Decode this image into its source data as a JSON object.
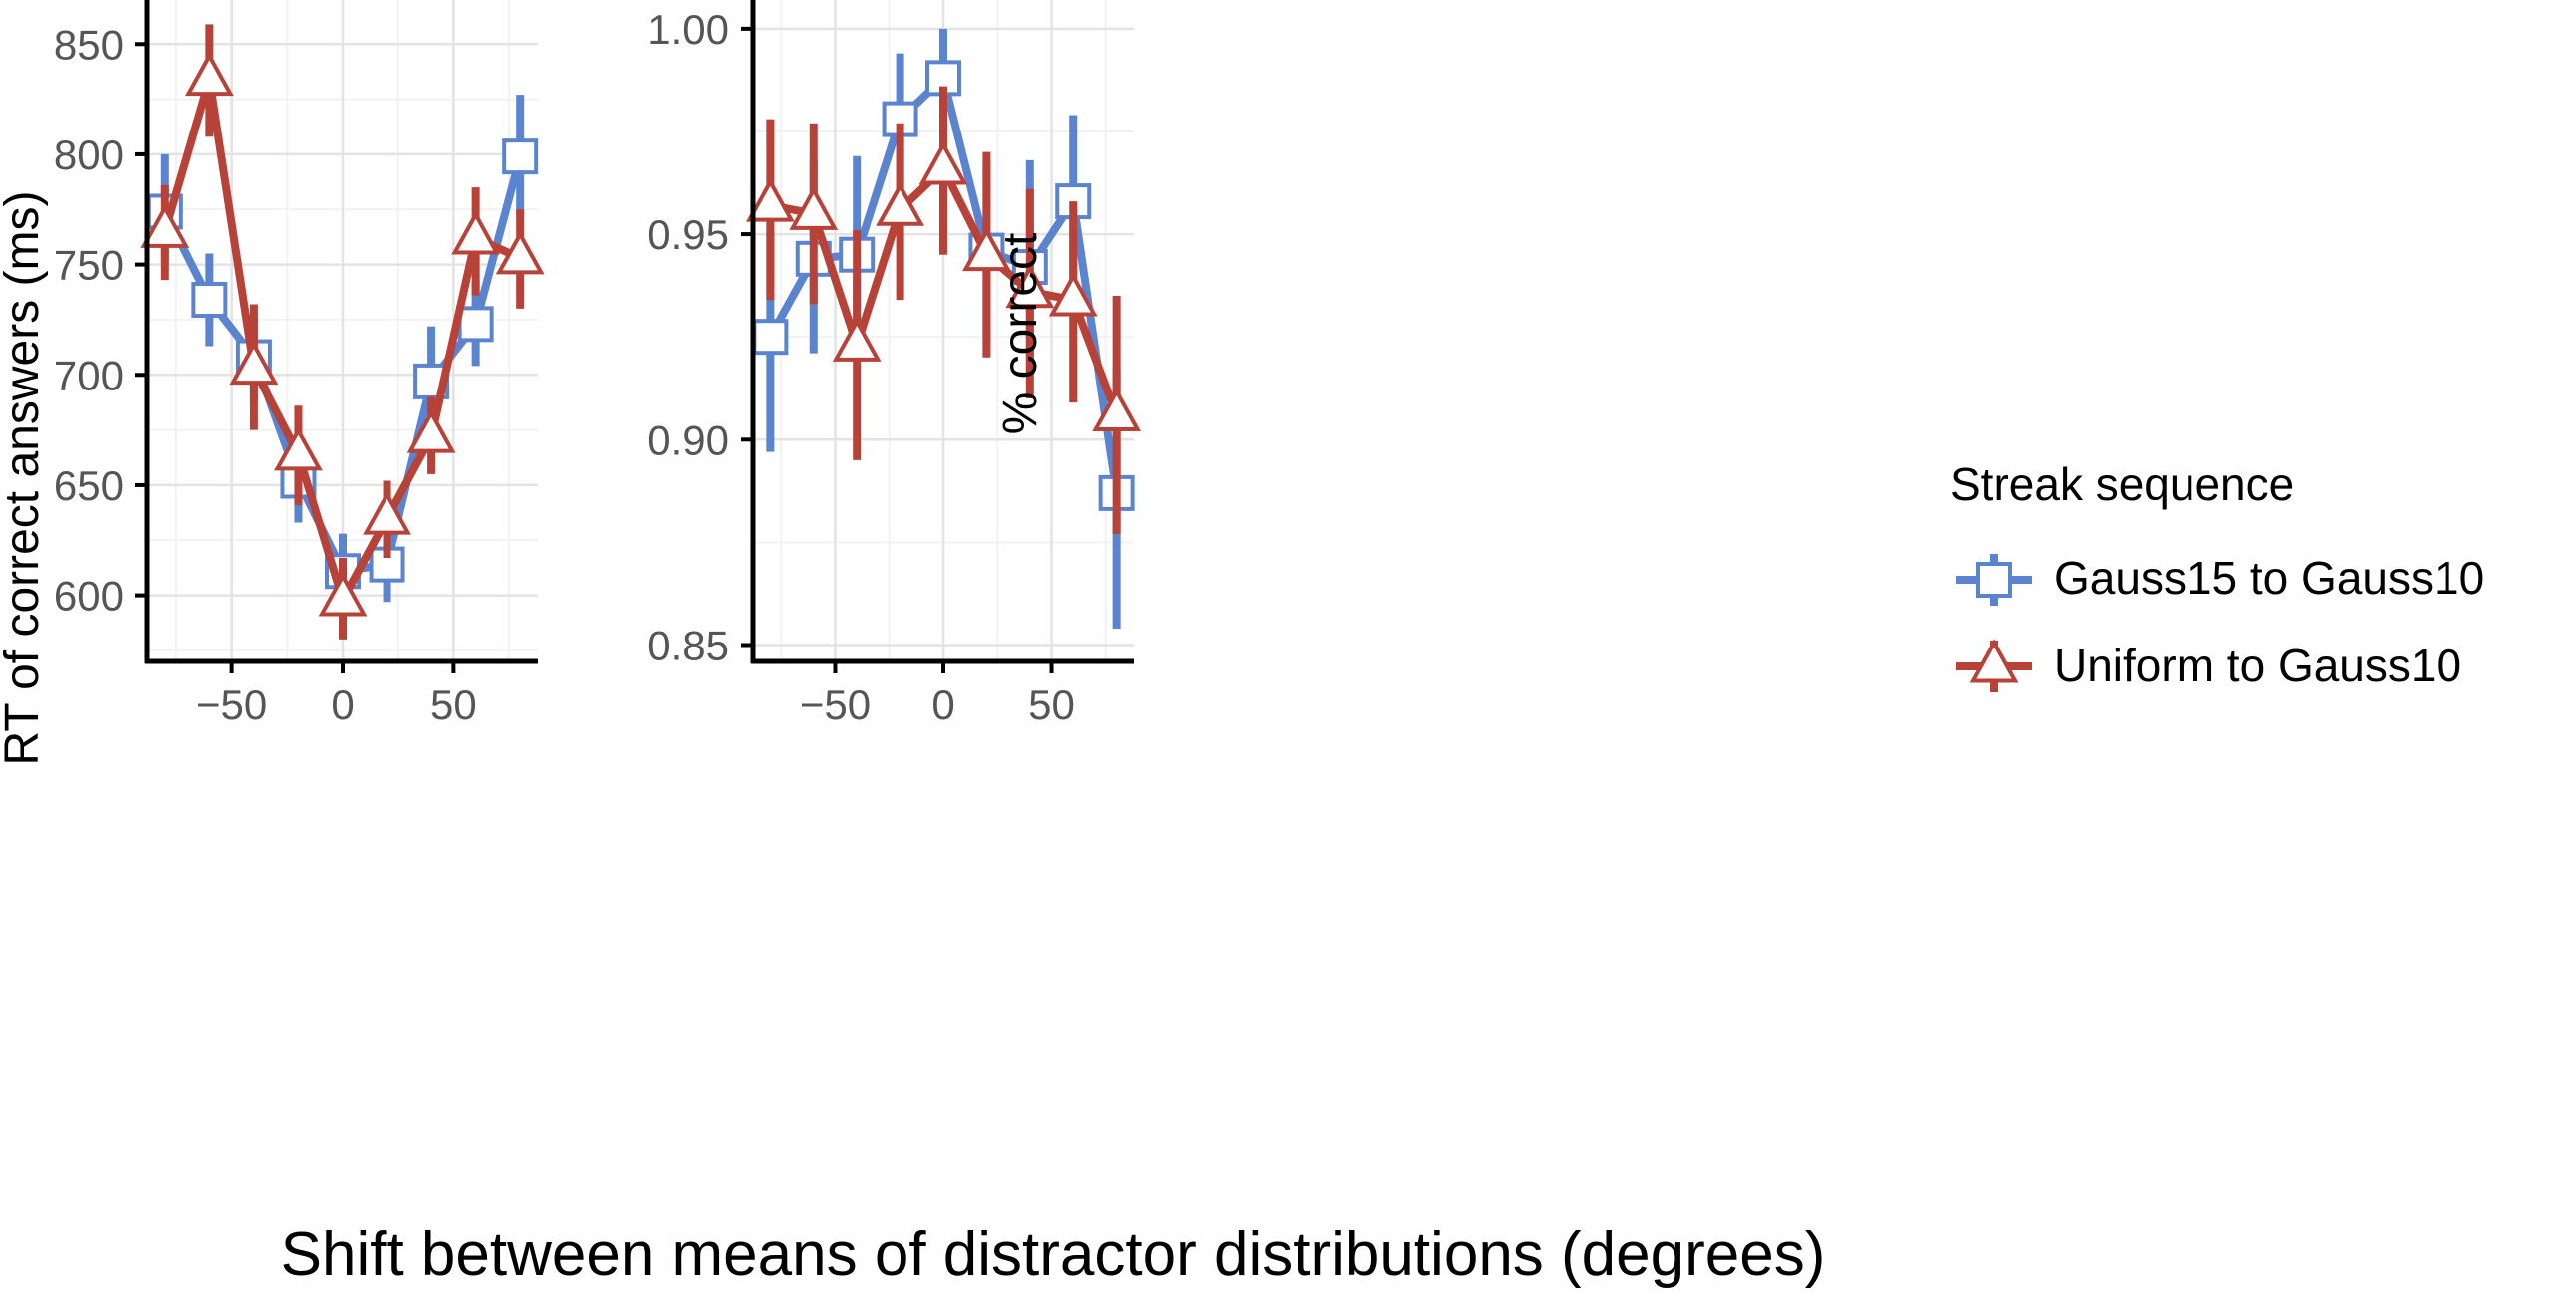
{
  "chart_data": [
    {
      "type": "line",
      "panel": "left",
      "ylabel": "RT of correct answers (ms)",
      "xlim": [
        -88,
        88
      ],
      "ylim": [
        570,
        870
      ],
      "x_ticks": [
        -50,
        0,
        50
      ],
      "x_tick_labels": [
        "−50",
        "0",
        "50"
      ],
      "y_ticks": [
        600,
        650,
        700,
        750,
        800,
        850
      ],
      "y_tick_labels": [
        "600",
        "650",
        "700",
        "750",
        "800",
        "850"
      ],
      "x": [
        -80,
        -60,
        -40,
        -20,
        0,
        20,
        40,
        60,
        80
      ],
      "series": [
        {
          "name": "Gauss15 to Gauss10",
          "color": "#5b84d0",
          "marker": "square",
          "values": [
            774,
            734,
            708,
            652,
            611,
            614,
            697,
            723,
            799
          ],
          "lower": [
            752,
            713,
            688,
            633,
            595,
            597,
            675,
            704,
            772
          ],
          "upper": [
            800,
            755,
            728,
            672,
            628,
            632,
            722,
            743,
            827
          ]
        },
        {
          "name": "Uniform to Gauss10",
          "color": "#b84237",
          "marker": "triangle",
          "values": [
            765,
            834,
            703,
            664,
            598,
            635,
            672,
            762,
            753
          ],
          "lower": [
            743,
            808,
            675,
            641,
            580,
            617,
            655,
            736,
            730
          ],
          "upper": [
            786,
            859,
            732,
            686,
            617,
            652,
            690,
            785,
            775
          ]
        }
      ]
    },
    {
      "type": "line",
      "panel": "right",
      "ylabel": "% correct",
      "xlim": [
        -88,
        88
      ],
      "ylim": [
        0.846,
        1.007
      ],
      "x_ticks": [
        -50,
        0,
        50
      ],
      "x_tick_labels": [
        "−50",
        "0",
        "50"
      ],
      "y_ticks": [
        0.85,
        0.9,
        0.95,
        1.0
      ],
      "y_tick_labels": [
        "0.85",
        "0.90",
        "0.95",
        "1.00"
      ],
      "x": [
        -80,
        -60,
        -40,
        -20,
        0,
        20,
        40,
        60,
        80
      ],
      "series": [
        {
          "name": "Gauss15 to Gauss10",
          "color": "#5b84d0",
          "marker": "square",
          "values": [
            0.925,
            0.944,
            0.945,
            0.978,
            0.988,
            0.946,
            0.942,
            0.958,
            0.887
          ],
          "lower": [
            0.897,
            0.921,
            0.921,
            0.958,
            0.968,
            0.922,
            0.917,
            0.934,
            0.854
          ],
          "upper": [
            0.951,
            0.968,
            0.969,
            0.994,
            1.0,
            0.968,
            0.968,
            0.979,
            0.917
          ]
        },
        {
          "name": "Uniform to Gauss10",
          "color": "#b84237",
          "marker": "triangle",
          "values": [
            0.957,
            0.955,
            0.923,
            0.956,
            0.966,
            0.945,
            0.936,
            0.934,
            0.906
          ],
          "lower": [
            0.934,
            0.933,
            0.895,
            0.934,
            0.945,
            0.92,
            0.91,
            0.909,
            0.877
          ],
          "upper": [
            0.978,
            0.977,
            0.951,
            0.977,
            0.986,
            0.97,
            0.961,
            0.958,
            0.935
          ]
        }
      ]
    }
  ],
  "xlabel": "Shift between means of distractor distributions (degrees)",
  "legend": {
    "title": "Streak sequence",
    "placement": "right",
    "items": [
      {
        "label": "Gauss15 to Gauss10",
        "color": "#5b84d0",
        "marker": "square"
      },
      {
        "label": "Uniform to Gauss10",
        "color": "#b84237",
        "marker": "triangle"
      }
    ]
  },
  "grid": true,
  "colors": {
    "grid_major": "#e3e3e3",
    "grid_minor": "#f2f2f2",
    "axis": "#000000",
    "tick_label": "#555555"
  }
}
